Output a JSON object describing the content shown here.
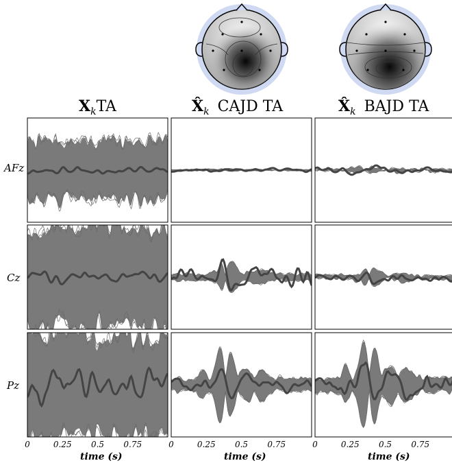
{
  "columns": [
    {
      "title_main": "X",
      "title_sub": "k",
      "title_rest": "TA",
      "hat": false
    },
    {
      "title_main": "X̂",
      "title_sub": "k",
      "title_rest": "CAJD TA",
      "hat": true
    },
    {
      "title_main": "X̂",
      "title_sub": "k",
      "title_rest": "BAJD TA",
      "hat": true
    }
  ],
  "rows": [
    "AFz",
    "Cz",
    "Pz"
  ],
  "xaxis": {
    "label": "time (s)",
    "ticks": [
      "0",
      "0.25",
      "0.5",
      "0.75"
    ]
  },
  "topomaps": [
    {
      "column": 1,
      "shade": "frontal-light-central-dark"
    },
    {
      "column": 2,
      "shade": "frontal-light-posterior-dark"
    }
  ],
  "colors": {
    "band_fill": "#7a7a7a",
    "mean_line": "#444444",
    "trial_line": "#6a6a6a",
    "frame": "#000000"
  },
  "chart_data": {
    "type": "line",
    "x_range": [
      0,
      1.0
    ],
    "xlabel": "time (s)",
    "panels": [
      {
        "row": "AFz",
        "column": 0,
        "amplitude": 0.55,
        "noise": 0.25,
        "mean_amp": 0.05
      },
      {
        "row": "AFz",
        "column": 1,
        "amplitude": 0.04,
        "noise": 0.02,
        "mean_amp": 0.02
      },
      {
        "row": "AFz",
        "column": 2,
        "amplitude": 0.08,
        "noise": 0.05,
        "mean_amp": 0.04
      },
      {
        "row": "Cz",
        "column": 0,
        "amplitude": 0.95,
        "noise": 0.35,
        "mean_amp": 0.08
      },
      {
        "row": "Cz",
        "column": 1,
        "amplitude": 0.3,
        "noise": 0.05,
        "mean_amp": 0.12
      },
      {
        "row": "Cz",
        "column": 2,
        "amplitude": 0.18,
        "noise": 0.05,
        "mean_amp": 0.05
      },
      {
        "row": "Pz",
        "column": 0,
        "amplitude": 0.95,
        "noise": 0.35,
        "mean_amp": 0.18
      },
      {
        "row": "Pz",
        "column": 1,
        "amplitude": 0.55,
        "noise": 0.08,
        "mean_amp": 0.1
      },
      {
        "row": "Pz",
        "column": 2,
        "amplitude": 0.65,
        "noise": 0.08,
        "mean_amp": 0.15
      }
    ]
  }
}
